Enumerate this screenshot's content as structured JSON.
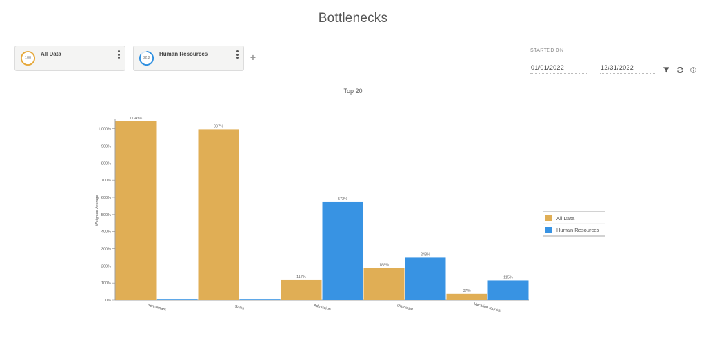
{
  "page": {
    "title": "Bottlenecks"
  },
  "segments": [
    {
      "label": "All Data",
      "ring_value": "100",
      "ring_fraction": 1.0,
      "color": "#e6a83a"
    },
    {
      "label": "Human Resources",
      "ring_value": "82.2",
      "ring_fraction": 0.822,
      "color": "#2e8fe0"
    }
  ],
  "date_range": {
    "label": "STARTED ON",
    "start": "01/01/2022",
    "end": "12/31/2022"
  },
  "icons": {
    "add": "plus-icon",
    "filter": "filter-icon",
    "refresh": "refresh-icon",
    "info": "info-icon",
    "menu": "kebab-menu-icon"
  },
  "chart_data": {
    "type": "bar",
    "title": "Top 20",
    "ylabel": "Weighted Average",
    "xlabel": "",
    "categories": [
      "Benchmark",
      "Sales",
      "Admission",
      "Dismissal",
      "Vacation request"
    ],
    "series": [
      {
        "name": "All Data",
        "color": "#e0ae55",
        "values": [
          1043,
          997,
          117,
          188,
          37
        ],
        "labels": [
          "1,043%",
          "997%",
          "117%",
          "188%",
          "37%"
        ]
      },
      {
        "name": "Human Resources",
        "color": "#3893e3",
        "values": [
          0,
          0,
          572,
          248,
          115
        ],
        "labels": [
          "",
          "",
          "572%",
          "248%",
          "115%"
        ]
      }
    ],
    "yticks": [
      "0%",
      "100%",
      "200%",
      "300%",
      "400%",
      "500%",
      "600%",
      "700%",
      "800%",
      "900%",
      "1,000%"
    ],
    "ylim": [
      0,
      1043
    ],
    "legend_position": "right",
    "grid": false
  }
}
